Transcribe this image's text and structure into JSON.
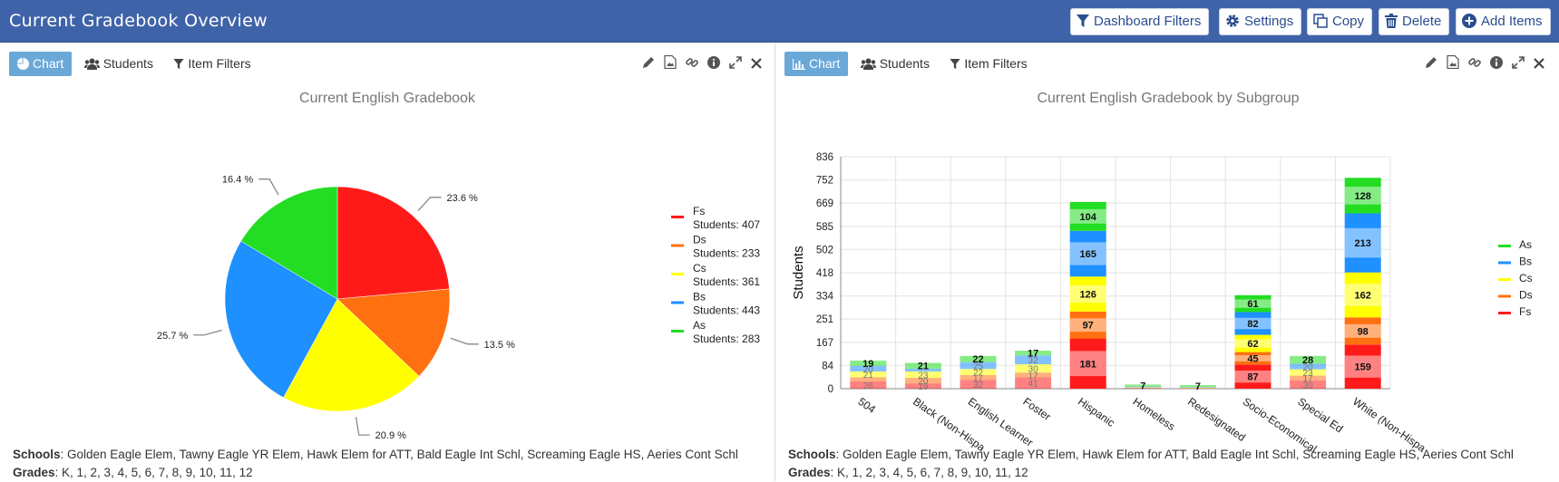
{
  "header": {
    "title": "Current Gradebook Overview",
    "buttons": {
      "filters": "Dashboard Filters",
      "settings": "Settings",
      "copy": "Copy",
      "delete": "Delete",
      "add": "Add Items"
    }
  },
  "tabs": {
    "chart": "Chart",
    "students": "Students",
    "item_filters": "Item Filters"
  },
  "footer": {
    "schools_label": "Schools",
    "schools": ": Golden Eagle Elem, Tawny Eagle YR Elem, Hawk Elem for ATT, Bald Eagle Int Schl, Screaming Eagle HS, Aeries Cont Schl",
    "grades_label": "Grades",
    "grades": ": K, 1, 2, 3, 4, 5, 6, 7, 8, 9, 10, 11, 12"
  },
  "colors": {
    "header": "#3f63a8",
    "As": "#22dd22",
    "Bs": "#1e90ff",
    "Cs": "#ffff00",
    "Ds": "#ff7010",
    "Fs": "#ff1a1a"
  },
  "chart_data": [
    {
      "type": "pie",
      "title": "Current English Gradebook",
      "legend_position": "right",
      "slices": [
        {
          "name": "Fs",
          "legend": "Students: 407",
          "percent_label": "23.6 %",
          "value": 407,
          "color": "#ff1a1a"
        },
        {
          "name": "Ds",
          "legend": "Students: 233",
          "percent_label": "13.5 %",
          "value": 233,
          "color": "#ff7010"
        },
        {
          "name": "Cs",
          "legend": "Students: 361",
          "percent_label": "20.9 %",
          "value": 361,
          "color": "#ffff00"
        },
        {
          "name": "Bs",
          "legend": "Students: 443",
          "percent_label": "25.7 %",
          "value": 443,
          "color": "#1e90ff"
        },
        {
          "name": "As",
          "legend": "Students: 283",
          "percent_label": "16.4 %",
          "value": 283,
          "color": "#22dd22"
        }
      ]
    },
    {
      "type": "bar",
      "stacked": true,
      "title": "Current English Gradebook by Subgroup",
      "ylabel": "Students",
      "ylim": [
        0,
        836
      ],
      "yticks": [
        "0",
        "84",
        "167",
        "251",
        "334",
        "418",
        "502",
        "585",
        "669",
        "752",
        "836"
      ],
      "grid": true,
      "legend_position": "right",
      "categories": [
        "504",
        "Black (Non-Hispa",
        "English Learner",
        "Foster",
        "Hispanic",
        "Homeless",
        "Redesignated",
        "Socio-Economical",
        "Special Ed",
        "White (Non-Hispa"
      ],
      "series": [
        {
          "name": "Fs",
          "color": "#ff1a1a",
          "values": [
            26,
            19,
            32,
            41,
            181,
            2,
            1,
            87,
            30,
            159
          ]
        },
        {
          "name": "Ds",
          "color": "#ff7010",
          "values": [
            15,
            20,
            17,
            17,
            97,
            1,
            1,
            45,
            17,
            98
          ]
        },
        {
          "name": "Cs",
          "color": "#ffff00",
          "values": [
            21,
            23,
            22,
            30,
            126,
            2,
            2,
            62,
            23,
            162
          ]
        },
        {
          "name": "Bs",
          "color": "#1e90ff",
          "values": [
            20,
            10,
            25,
            32,
            165,
            3,
            2,
            82,
            20,
            213
          ]
        },
        {
          "name": "As",
          "color": "#22dd22",
          "values": [
            19,
            21,
            22,
            17,
            104,
            7,
            7,
            61,
            28,
            128
          ]
        }
      ],
      "legend_order": [
        "As",
        "Bs",
        "Cs",
        "Ds",
        "Fs"
      ]
    }
  ]
}
